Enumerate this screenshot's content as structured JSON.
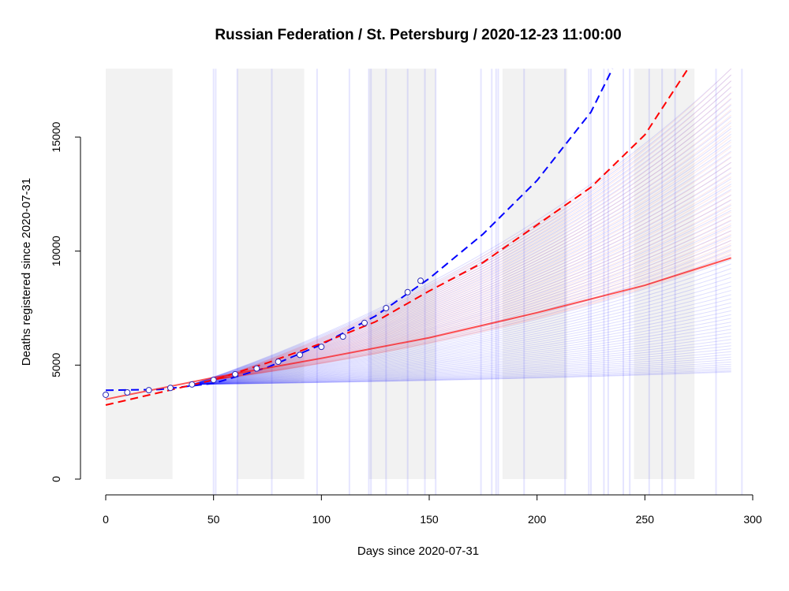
{
  "chart_data": {
    "type": "line",
    "title": "Russian Federation / St. Petersburg / 2020-12-23 11:00:00",
    "xlabel": "Days since 2020-07-31",
    "ylabel": "Deaths registered since 2020-07-31",
    "xlim": [
      0,
      300
    ],
    "ylim": [
      0,
      18000
    ],
    "x_ticks": [
      0,
      50,
      100,
      150,
      200,
      250,
      300
    ],
    "y_ticks": [
      0,
      5000,
      10000,
      15000
    ],
    "shaded_periods": [
      [
        0,
        31
      ],
      [
        61,
        92
      ],
      [
        122,
        153
      ],
      [
        184,
        214
      ],
      [
        245,
        273
      ]
    ],
    "event_lines_x": [
      50,
      51,
      61,
      77,
      98,
      113,
      122,
      123,
      130,
      140,
      148,
      153,
      174,
      179,
      181,
      182,
      194,
      213,
      224,
      225,
      231,
      233,
      240,
      243,
      252,
      258,
      264,
      283,
      295
    ],
    "observed": {
      "x": [
        0,
        10,
        20,
        30,
        40,
        50,
        60,
        70,
        80,
        90,
        100,
        110,
        120,
        130,
        140,
        146
      ],
      "y": [
        3700,
        3800,
        3900,
        4000,
        4150,
        4350,
        4600,
        4850,
        5150,
        5450,
        5800,
        6250,
        6850,
        7500,
        8200,
        8700
      ]
    },
    "series": [
      {
        "color": "#0000ff",
        "style": "dashed",
        "x": [
          0,
          25,
          50,
          75,
          100,
          125,
          150,
          175,
          200,
          225,
          235
        ],
        "y": [
          3900,
          3930,
          4200,
          4900,
          5900,
          7150,
          8800,
          10750,
          13100,
          16100,
          18000
        ]
      },
      {
        "color": "#ff0000",
        "style": "dashed",
        "x": [
          0,
          25,
          50,
          75,
          100,
          125,
          150,
          175,
          200,
          225,
          250,
          270
        ],
        "y": [
          3250,
          3800,
          4350,
          5100,
          5950,
          6900,
          8250,
          9500,
          11150,
          12800,
          15100,
          18000
        ]
      },
      {
        "color": "#ff0000",
        "style": "solid",
        "x": [
          0,
          50,
          100,
          150,
          200,
          250,
          290
        ],
        "y": [
          3500,
          4450,
          5300,
          6200,
          7300,
          8500,
          9700
        ]
      }
    ],
    "fan_blue": {
      "color": "#0000ff",
      "pivot": [
        40,
        4150
      ],
      "end_x": 290,
      "end_y_min": 4700,
      "end_y_max": 18000
    },
    "fan_red": {
      "color": "#ff0000",
      "pivot": [
        50,
        4350
      ],
      "end_x": 290,
      "end_y_min": 9700,
      "end_y_max": 18000
    }
  }
}
